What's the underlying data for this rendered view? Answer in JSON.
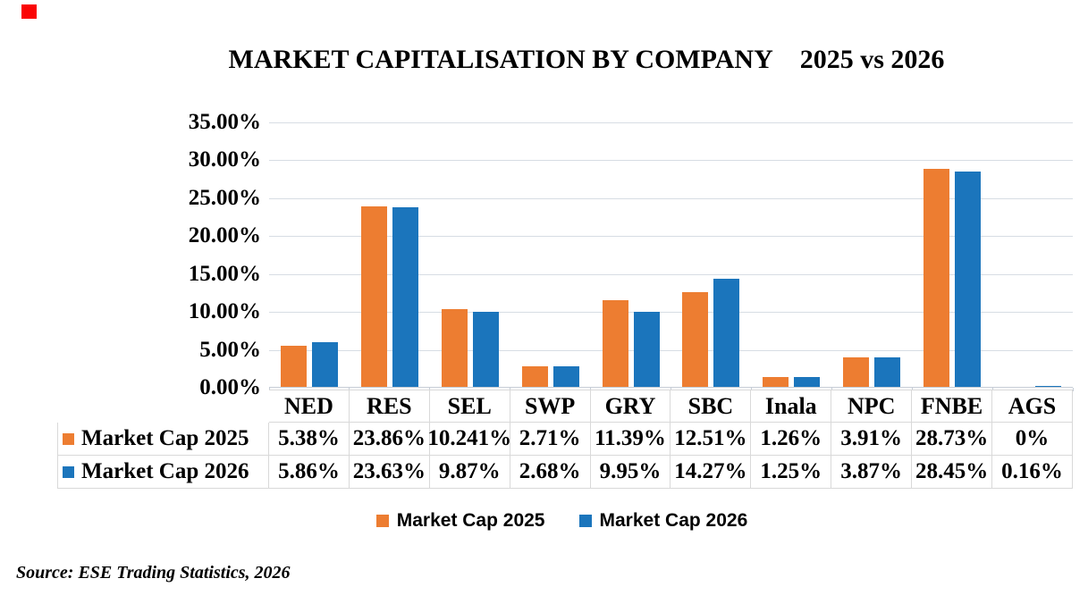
{
  "decorations": {
    "corner_marker_color": "#fa0505"
  },
  "title": {
    "main": "MARKET CAPITALISATION BY COMPANY",
    "years": "2025 vs 2026"
  },
  "chart_data": {
    "type": "bar",
    "title": "MARKET CAPITALISATION BY COMPANY 2025 vs 2026",
    "categories": [
      "NED",
      "RES",
      "SEL",
      "SWP",
      "GRY",
      "SBC",
      "Inala",
      "NPC",
      "FNBE",
      "AGS"
    ],
    "series": [
      {
        "name": "Market Cap 2025",
        "color": "#ED7D31",
        "values": [
          5.38,
          23.86,
          10.241,
          2.71,
          11.39,
          12.51,
          1.26,
          3.91,
          28.73,
          0
        ],
        "labels": [
          "5.38%",
          "23.86%",
          "10.241%",
          "2.71%",
          "11.39%",
          "12.51%",
          "1.26%",
          "3.91%",
          "28.73%",
          "0%"
        ]
      },
      {
        "name": "Market Cap 2026",
        "color": "#1B75BC",
        "values": [
          5.86,
          23.63,
          9.87,
          2.68,
          9.95,
          14.27,
          1.25,
          3.87,
          28.45,
          0.16
        ],
        "labels": [
          "5.86%",
          "23.63%",
          "9.87%",
          "2.68%",
          "9.95%",
          "14.27%",
          "1.25%",
          "3.87%",
          "28.45%",
          "0.16%"
        ]
      }
    ],
    "ylabel": "",
    "xlabel": "",
    "ylim": [
      0,
      35
    ],
    "ytick_step": 5,
    "ytick_labels": [
      "0.00%",
      "5.00%",
      "10.00%",
      "15.00%",
      "20.00%",
      "25.00%",
      "30.00%",
      "35.00%"
    ],
    "grid": true,
    "legend_position": "bottom",
    "data_table_shown": true,
    "grid_color": "#D7DDE4",
    "table_border_color": "#D9D9D9"
  },
  "source": {
    "text": "Source: ESE Trading Statistics, 2026"
  }
}
